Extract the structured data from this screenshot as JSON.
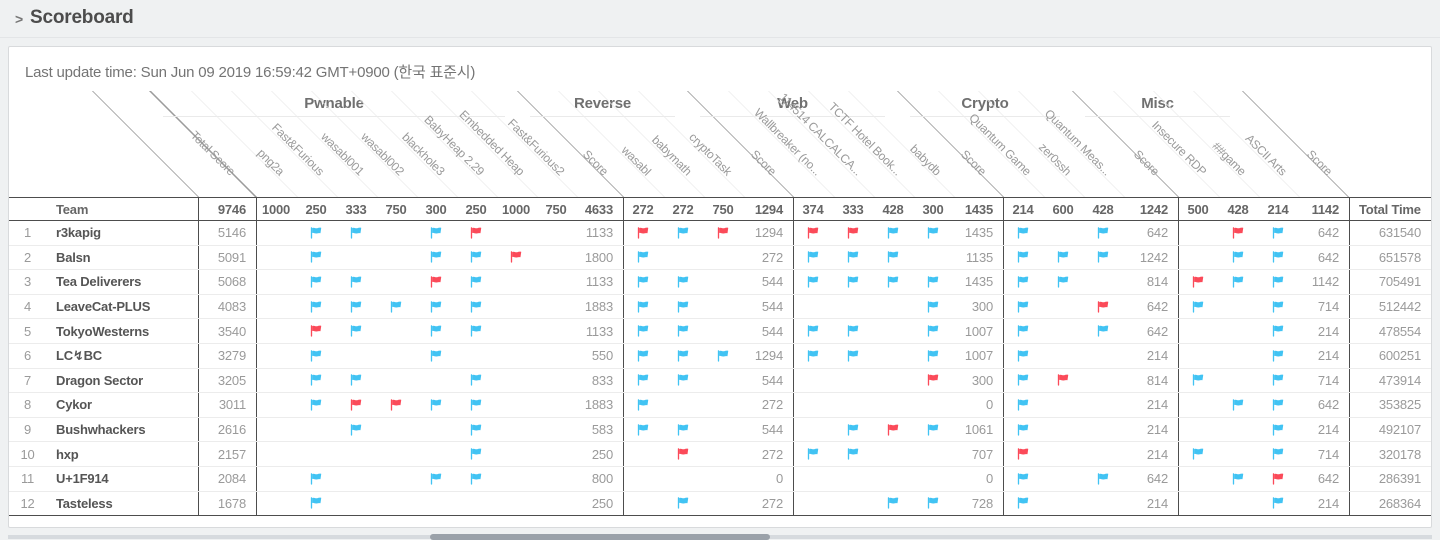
{
  "page": {
    "chevron": ">",
    "title": "Scoreboard"
  },
  "last_update": "Last update time: Sun Jun 09 2019 16:59:42 GMT+0900 (한국 표준시)",
  "colors": {
    "flag_blue": "#41c3f3",
    "flag_red": "#fb4a59",
    "dark_border": "#4d4d4d"
  },
  "table": {
    "team_header": "Team",
    "total_score_header": "Total Score",
    "total_score_max": "9746",
    "score_col_label": "Score",
    "total_time_header": "Total Time",
    "categories": [
      {
        "name": "Pwnable",
        "challenges": [
          "png2a",
          "Fast&Furious",
          "wasabl001",
          "wasabl002",
          "blackhole3",
          "BabyHeap 2.29",
          "Embedded Heap",
          "Fast&Furious2"
        ],
        "points": [
          "1000",
          "250",
          "333",
          "750",
          "300",
          "250",
          "1000",
          "750"
        ],
        "max": "4633"
      },
      {
        "name": "Reverse",
        "challenges": [
          "wasabl",
          "babymath",
          "cryptoTask"
        ],
        "points": [
          "272",
          "272",
          "750"
        ],
        "max": "1294"
      },
      {
        "name": "Web",
        "challenges": [
          "Wallbreaker (no...",
          "114514 CALCALCA...",
          "TCTF Hotel Book...",
          "babydb"
        ],
        "points": [
          "374",
          "333",
          "428",
          "300"
        ],
        "max": "1435"
      },
      {
        "name": "Crypto",
        "challenges": [
          "Quantum Game",
          "zer0ssh",
          "Quantum Meas..."
        ],
        "points": [
          "214",
          "600",
          "428"
        ],
        "max": "1242"
      },
      {
        "name": "Misc",
        "challenges": [
          "Insecure RDP",
          "##game",
          "ASCII Arts"
        ],
        "points": [
          "500",
          "428",
          "214"
        ],
        "max": "1142"
      }
    ],
    "teams": [
      {
        "rank": "1",
        "name": "r3kapig",
        "total": "5146",
        "total_time": "631540",
        "cat_scores": [
          "1133",
          "1294",
          "1435",
          "642",
          "642"
        ],
        "solves": [
          [
            "",
            "b",
            "b",
            "",
            "b",
            "r",
            "",
            ""
          ],
          [
            "r",
            "b",
            "r"
          ],
          [
            "r",
            "r",
            "b",
            "b"
          ],
          [
            "b",
            "",
            "b"
          ],
          [
            "",
            "r",
            "b"
          ]
        ]
      },
      {
        "rank": "2",
        "name": "Balsn",
        "total": "5091",
        "total_time": "651578",
        "cat_scores": [
          "1800",
          "272",
          "1135",
          "1242",
          "642"
        ],
        "solves": [
          [
            "",
            "b",
            "",
            "",
            "b",
            "b",
            "r",
            ""
          ],
          [
            "b",
            "",
            ""
          ],
          [
            "b",
            "b",
            "b",
            ""
          ],
          [
            "b",
            "b",
            "b"
          ],
          [
            "",
            "b",
            "b"
          ]
        ]
      },
      {
        "rank": "3",
        "name": "Tea Deliverers",
        "total": "5068",
        "total_time": "705491",
        "cat_scores": [
          "1133",
          "544",
          "1435",
          "814",
          "1142"
        ],
        "solves": [
          [
            "",
            "b",
            "b",
            "",
            "r",
            "b",
            "",
            ""
          ],
          [
            "b",
            "b",
            ""
          ],
          [
            "b",
            "b",
            "b",
            "b"
          ],
          [
            "b",
            "b",
            ""
          ],
          [
            "r",
            "b",
            "b"
          ]
        ]
      },
      {
        "rank": "4",
        "name": "LeaveCat-PLUS",
        "total": "4083",
        "total_time": "512442",
        "cat_scores": [
          "1883",
          "544",
          "300",
          "642",
          "714"
        ],
        "solves": [
          [
            "",
            "b",
            "b",
            "b",
            "b",
            "b",
            "",
            ""
          ],
          [
            "b",
            "b",
            ""
          ],
          [
            "",
            "",
            "",
            "b"
          ],
          [
            "b",
            "",
            "r"
          ],
          [
            "b",
            "",
            "b"
          ]
        ]
      },
      {
        "rank": "5",
        "name": "TokyoWesterns",
        "total": "3540",
        "total_time": "478554",
        "cat_scores": [
          "1133",
          "544",
          "1007",
          "642",
          "214"
        ],
        "solves": [
          [
            "",
            "r",
            "b",
            "",
            "b",
            "b",
            "",
            ""
          ],
          [
            "b",
            "b",
            ""
          ],
          [
            "b",
            "b",
            "",
            "b"
          ],
          [
            "b",
            "",
            "b"
          ],
          [
            "",
            "",
            "b"
          ]
        ]
      },
      {
        "rank": "6",
        "name": "LC↯BC",
        "total": "3279",
        "total_time": "600251",
        "cat_scores": [
          "550",
          "1294",
          "1007",
          "214",
          "214"
        ],
        "solves": [
          [
            "",
            "b",
            "",
            "",
            "b",
            "",
            "",
            ""
          ],
          [
            "b",
            "b",
            "b"
          ],
          [
            "b",
            "b",
            "",
            "b"
          ],
          [
            "b",
            "",
            ""
          ],
          [
            "",
            "",
            "b"
          ]
        ]
      },
      {
        "rank": "7",
        "name": "Dragon Sector",
        "total": "3205",
        "total_time": "473914",
        "cat_scores": [
          "833",
          "544",
          "300",
          "814",
          "714"
        ],
        "solves": [
          [
            "",
            "b",
            "b",
            "",
            "",
            "b",
            "",
            ""
          ],
          [
            "b",
            "b",
            ""
          ],
          [
            "",
            "",
            "",
            "r"
          ],
          [
            "b",
            "r",
            ""
          ],
          [
            "b",
            "",
            "b"
          ]
        ]
      },
      {
        "rank": "8",
        "name": "Cykor",
        "total": "3011",
        "total_time": "353825",
        "cat_scores": [
          "1883",
          "272",
          "0",
          "214",
          "642"
        ],
        "solves": [
          [
            "",
            "b",
            "r",
            "r",
            "b",
            "b",
            "",
            ""
          ],
          [
            "b",
            "",
            ""
          ],
          [
            "",
            "",
            "",
            ""
          ],
          [
            "b",
            "",
            ""
          ],
          [
            "",
            "b",
            "b"
          ]
        ]
      },
      {
        "rank": "9",
        "name": "Bushwhackers",
        "total": "2616",
        "total_time": "492107",
        "cat_scores": [
          "583",
          "544",
          "1061",
          "214",
          "214"
        ],
        "solves": [
          [
            "",
            "",
            "b",
            "",
            "",
            "b",
            "",
            ""
          ],
          [
            "b",
            "b",
            ""
          ],
          [
            "",
            "b",
            "r",
            "b"
          ],
          [
            "b",
            "",
            ""
          ],
          [
            "",
            "",
            "b"
          ]
        ]
      },
      {
        "rank": "10",
        "name": "hxp",
        "total": "2157",
        "total_time": "320178",
        "cat_scores": [
          "250",
          "272",
          "707",
          "214",
          "714"
        ],
        "solves": [
          [
            "",
            "",
            "",
            "",
            "",
            "b",
            "",
            ""
          ],
          [
            "",
            "r",
            ""
          ],
          [
            "b",
            "b",
            "",
            ""
          ],
          [
            "r",
            "",
            ""
          ],
          [
            "b",
            "",
            "b"
          ]
        ]
      },
      {
        "rank": "11",
        "name": "U+1F914",
        "total": "2084",
        "total_time": "286391",
        "cat_scores": [
          "800",
          "0",
          "0",
          "642",
          "642"
        ],
        "solves": [
          [
            "",
            "b",
            "",
            "",
            "b",
            "b",
            "",
            ""
          ],
          [
            "",
            "",
            ""
          ],
          [
            "",
            "",
            "",
            ""
          ],
          [
            "b",
            "",
            "b"
          ],
          [
            "",
            "b",
            "r"
          ]
        ]
      },
      {
        "rank": "12",
        "name": "Tasteless",
        "total": "1678",
        "total_time": "268364",
        "cat_scores": [
          "250",
          "272",
          "728",
          "214",
          "214"
        ],
        "solves": [
          [
            "",
            "b",
            "",
            "",
            "",
            "",
            "",
            ""
          ],
          [
            "",
            "b",
            ""
          ],
          [
            "",
            "",
            "b",
            "b"
          ],
          [
            "b",
            "",
            ""
          ],
          [
            "",
            "",
            "b"
          ]
        ]
      }
    ]
  }
}
